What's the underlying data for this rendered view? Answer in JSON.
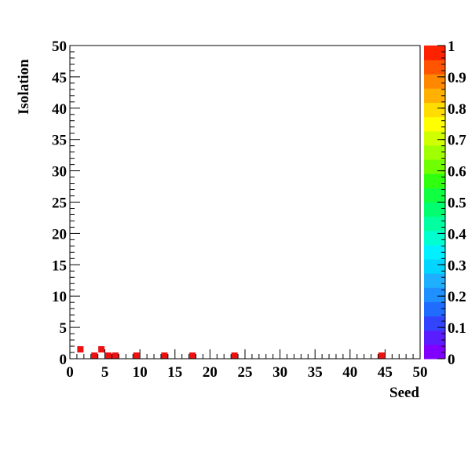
{
  "chart_data": {
    "type": "heatmap",
    "title": "",
    "xlabel": "Seed",
    "ylabel": "Isolation",
    "xlim": [
      0,
      50
    ],
    "ylim": [
      0,
      50
    ],
    "x_ticks": [
      "0",
      "5",
      "10",
      "15",
      "20",
      "25",
      "30",
      "35",
      "40",
      "45",
      "50"
    ],
    "y_ticks": [
      "0",
      "5",
      "10",
      "15",
      "20",
      "25",
      "30",
      "35",
      "40",
      "45",
      "50"
    ],
    "bin_width": 1,
    "cells": [
      {
        "x": 1.5,
        "y": 1.5,
        "z": 1
      },
      {
        "x": 3.5,
        "y": 0.5,
        "z": 1
      },
      {
        "x": 4.5,
        "y": 1.5,
        "z": 1
      },
      {
        "x": 5.5,
        "y": 0.5,
        "z": 1
      },
      {
        "x": 6.5,
        "y": 0.5,
        "z": 1
      },
      {
        "x": 9.5,
        "y": 0.5,
        "z": 1
      },
      {
        "x": 13.5,
        "y": 0.5,
        "z": 1
      },
      {
        "x": 17.5,
        "y": 0.5,
        "z": 1
      },
      {
        "x": 23.5,
        "y": 0.5,
        "z": 1
      },
      {
        "x": 44.5,
        "y": 0.5,
        "z": 1
      }
    ],
    "zlim": [
      0,
      1
    ],
    "palette_ticks": [
      "0",
      "0.1",
      "0.2",
      "0.3",
      "0.4",
      "0.5",
      "0.6",
      "0.7",
      "0.8",
      "0.9",
      "1"
    ],
    "palette_colors": [
      "#8000ff",
      "#5a1dff",
      "#3344ff",
      "#1f6cff",
      "#1e90ff",
      "#1eb0ff",
      "#00d6ff",
      "#00f0ff",
      "#00ffd0",
      "#00ffa0",
      "#00ff70",
      "#10ff40",
      "#30ff10",
      "#70ff00",
      "#a0ff00",
      "#d0ff00",
      "#ffff00",
      "#ffdd00",
      "#ffb000",
      "#ff8800",
      "#ff5500",
      "#ff2200"
    ],
    "grid": false,
    "legend": "colorbar-right"
  }
}
